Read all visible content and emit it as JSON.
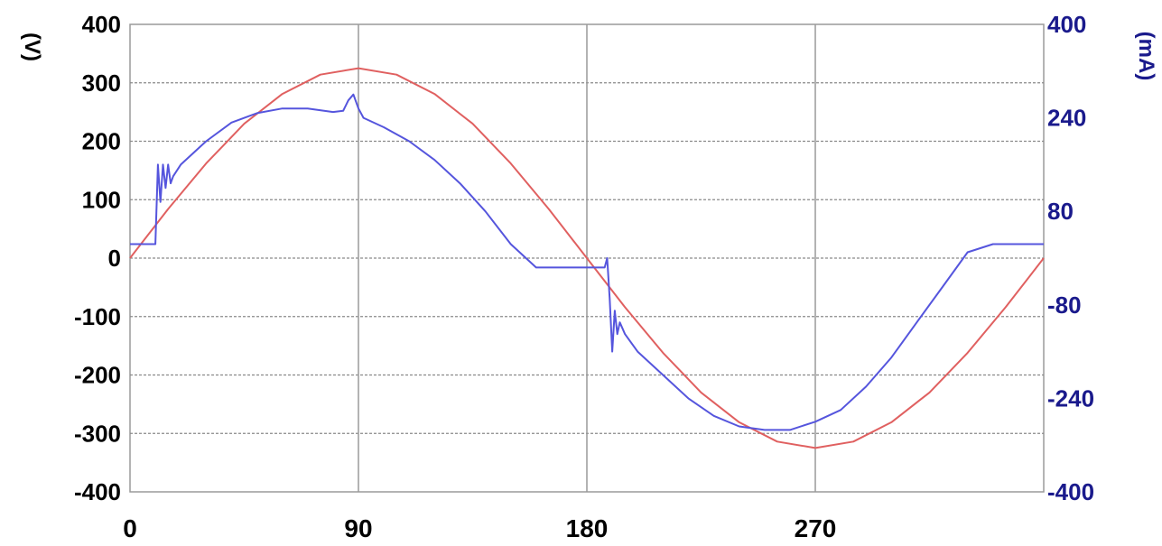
{
  "chart_data": {
    "type": "line",
    "title": "",
    "xlabel": "",
    "x_ticks": [
      "0",
      "90",
      "180",
      "270"
    ],
    "xlim": [
      0,
      360
    ],
    "grid": true,
    "legend": "none",
    "left_axis": {
      "unit": "(V)",
      "ylim": [
        -400,
        400
      ],
      "ticks": [
        "400",
        "300",
        "200",
        "100",
        "0",
        "-100",
        "-200",
        "-300",
        "-400"
      ],
      "color": "#000000"
    },
    "right_axis": {
      "unit": "(mA)",
      "ylim": [
        -400,
        400
      ],
      "ticks": [
        "400",
        "240",
        "80",
        "-80",
        "-240",
        "-400"
      ],
      "color": "#1a1a8c"
    },
    "series": [
      {
        "axis": "left",
        "color": "#e06060",
        "x": [
          0,
          15,
          30,
          45,
          60,
          75,
          90,
          105,
          120,
          135,
          150,
          165,
          180,
          195,
          210,
          225,
          240,
          255,
          270,
          285,
          300,
          315,
          330,
          345,
          360
        ],
        "y": [
          0,
          84,
          162,
          230,
          281,
          314,
          325,
          314,
          281,
          230,
          162,
          84,
          0,
          -84,
          -162,
          -230,
          -281,
          -314,
          -325,
          -314,
          -281,
          -230,
          -162,
          -84,
          0
        ]
      },
      {
        "axis": "right",
        "color": "#5555dd",
        "x": [
          0,
          8,
          10,
          11,
          12,
          13,
          14,
          15,
          16,
          17,
          20,
          30,
          40,
          50,
          60,
          70,
          80,
          84,
          86,
          88,
          90,
          92,
          100,
          110,
          120,
          130,
          140,
          150,
          160,
          170,
          180,
          187,
          188,
          189,
          190,
          191,
          192,
          193,
          195,
          200,
          210,
          220,
          230,
          240,
          250,
          260,
          270,
          280,
          290,
          300,
          310,
          320,
          330,
          340,
          360
        ],
        "y": [
          24,
          24,
          24,
          160,
          96,
          160,
          120,
          160,
          128,
          140,
          160,
          200,
          232,
          248,
          256,
          256,
          250,
          252,
          270,
          280,
          256,
          240,
          224,
          200,
          168,
          128,
          80,
          24,
          -16,
          -16,
          -16,
          -16,
          0,
          -70,
          -160,
          -90,
          -130,
          -110,
          -130,
          -160,
          -200,
          -240,
          -270,
          -288,
          -294,
          -294,
          -280,
          -260,
          -220,
          -170,
          -110,
          -50,
          10,
          24,
          24
        ]
      }
    ]
  }
}
